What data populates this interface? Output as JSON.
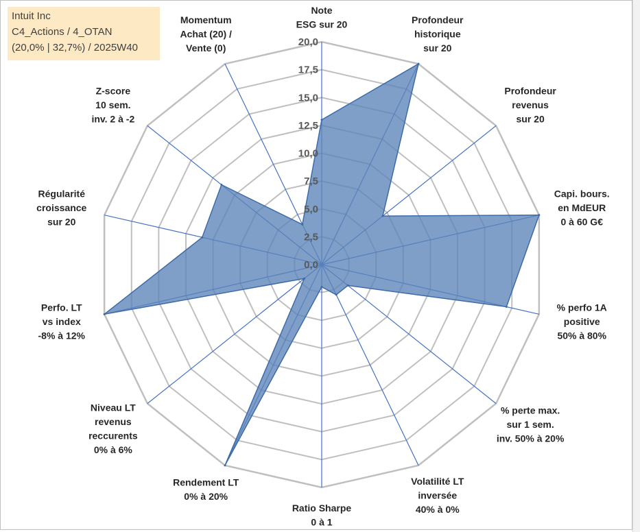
{
  "info_box": {
    "line1": "Intuit Inc",
    "line2": "C4_Actions / 4_OTAN",
    "line3": "(20,0% | 32,7%) / 2025W40"
  },
  "chart_data": {
    "type": "radar",
    "r_min": 0,
    "r_max": 20,
    "ticks": [
      "0,0",
      "2,5",
      "5,0",
      "7,5",
      "10,0",
      "12,5",
      "15,0",
      "17,5",
      "20,0"
    ],
    "grid_color": "#bfbfbf",
    "spoke_color": "#4472c4",
    "fill_color": "#5b84b8",
    "line_color": "#3c6aa8",
    "axes": [
      {
        "label": [
          "Note",
          "ESG sur 20"
        ],
        "value": 13.0
      },
      {
        "label": [
          "Profondeur",
          "historique",
          "sur 20"
        ],
        "value": 20.0
      },
      {
        "label": [
          "Profondeur",
          "revenus",
          "sur 20"
        ],
        "value": 7.0
      },
      {
        "label": [
          "Capi. bours.",
          "en MdEUR",
          "0 à 60 G€"
        ],
        "value": 20.0
      },
      {
        "label": [
          "% perfo 1A",
          "positive",
          "50% à 80%"
        ],
        "value": 17.0
      },
      {
        "label": [
          "% perte max.",
          "sur 1 sem.",
          "inv. 50% à 20%"
        ],
        "value": 3.0
      },
      {
        "label": [
          "Volatilité LT",
          "inversée",
          "40% à 0%"
        ],
        "value": 3.0
      },
      {
        "label": [
          "Ratio Sharpe",
          "0 à 1"
        ],
        "value": 2.0
      },
      {
        "label": [
          "Rendement LT",
          "0% à 20%"
        ],
        "value": 20.0
      },
      {
        "label": [
          "Niveau LT",
          "revenus",
          "reccurents",
          "0% à 6%"
        ],
        "value": 2.0
      },
      {
        "label": [
          "Perfo. LT",
          "vs index",
          "-8% à 12%"
        ],
        "value": 20.0
      },
      {
        "label": [
          "Régularité",
          "croissance",
          "sur 20"
        ],
        "value": 11.0
      },
      {
        "label": [
          "Z-score",
          "10 sem.",
          "inv. 2 à -2"
        ],
        "value": 11.5
      },
      {
        "label": [
          "Momentum",
          "Achat (20) /",
          "Vente (0)"
        ],
        "value": 4.0
      }
    ]
  }
}
